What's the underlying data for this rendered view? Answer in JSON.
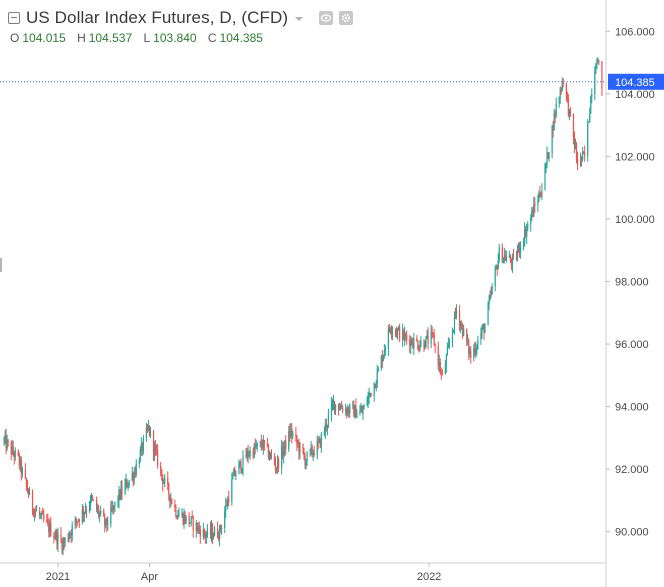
{
  "legend": {
    "title": "US Dollar Index Futures, D, (CFD)",
    "icons": [
      "collapse-icon",
      "dropdown-caret-icon",
      "eye-icon",
      "gear-icon"
    ],
    "ohlc": {
      "o_label": "O",
      "o_value": "104.015",
      "h_label": "H",
      "h_value": "104.537",
      "l_label": "L",
      "l_value": "103.840",
      "c_label": "C",
      "c_value": "104.385"
    }
  },
  "colors": {
    "up": "#26a69a",
    "down": "#ef5350",
    "price_line": "#2962ff",
    "price_tag_bg": "#2962ff",
    "axis_text": "#4a4a4a",
    "grid": "#e6e6e6"
  },
  "chart_data": {
    "type": "candlestick",
    "title": "US Dollar Index Futures, D, (CFD)",
    "last_price": "104.385",
    "ylim": [
      89.0,
      107.0
    ],
    "y_ticks": [
      "90.000",
      "92.000",
      "94.000",
      "96.000",
      "98.000",
      "100.000",
      "102.000",
      "104.000",
      "106.000"
    ],
    "x_ticks": [
      "2021",
      "Apr",
      "2022"
    ],
    "grid": false,
    "trend_path": [
      [
        "2020-11-09",
        92.9
      ],
      [
        "2020-11-23",
        92.3
      ],
      [
        "2020-12-07",
        90.8
      ],
      [
        "2020-12-21",
        90.2
      ],
      [
        "2021-01-06",
        89.6
      ],
      [
        "2021-01-20",
        90.4
      ],
      [
        "2021-02-03",
        91.0
      ],
      [
        "2021-02-17",
        90.2
      ],
      [
        "2021-03-03",
        91.2
      ],
      [
        "2021-03-17",
        91.9
      ],
      [
        "2021-03-31",
        93.3
      ],
      [
        "2021-04-14",
        91.7
      ],
      [
        "2021-04-28",
        90.6
      ],
      [
        "2021-05-12",
        90.3
      ],
      [
        "2021-05-26",
        89.9
      ],
      [
        "2021-06-09",
        90.0
      ],
      [
        "2021-06-23",
        91.8
      ],
      [
        "2021-07-07",
        92.5
      ],
      [
        "2021-07-21",
        92.8
      ],
      [
        "2021-08-04",
        92.1
      ],
      [
        "2021-08-18",
        93.2
      ],
      [
        "2021-09-01",
        92.3
      ],
      [
        "2021-09-15",
        92.8
      ],
      [
        "2021-09-29",
        94.1
      ],
      [
        "2021-10-13",
        93.9
      ],
      [
        "2021-10-27",
        93.8
      ],
      [
        "2021-11-10",
        94.9
      ],
      [
        "2021-11-24",
        96.6
      ],
      [
        "2021-12-08",
        96.2
      ],
      [
        "2021-12-22",
        96.0
      ],
      [
        "2022-01-05",
        96.2
      ],
      [
        "2022-01-14",
        94.9
      ],
      [
        "2022-01-28",
        97.1
      ],
      [
        "2022-02-11",
        95.6
      ],
      [
        "2022-02-25",
        96.6
      ],
      [
        "2022-03-11",
        98.9
      ],
      [
        "2022-03-25",
        98.6
      ],
      [
        "2022-04-08",
        99.8
      ],
      [
        "2022-04-22",
        101.0
      ],
      [
        "2022-05-06",
        103.6
      ],
      [
        "2022-05-13",
        104.5
      ],
      [
        "2022-05-27",
        101.8
      ],
      [
        "2022-06-03",
        102.0
      ],
      [
        "2022-06-10",
        104.2
      ],
      [
        "2022-06-15",
        105.2
      ],
      [
        "2022-06-20",
        104.3
      ]
    ]
  }
}
